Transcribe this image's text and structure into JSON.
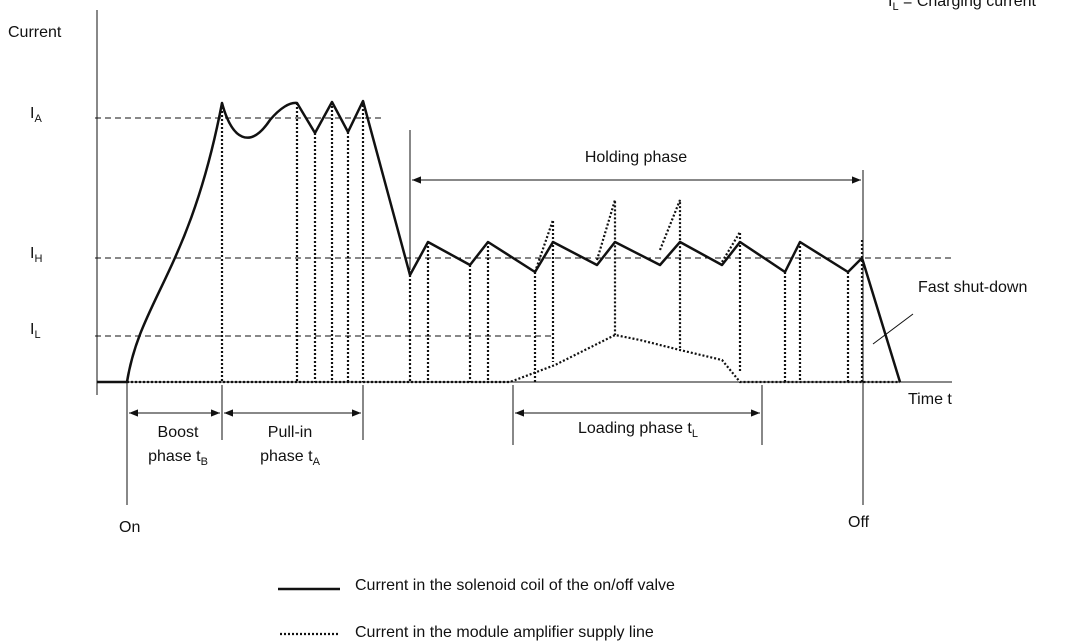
{
  "note_top": {
    "main": "I",
    "sub": "L",
    "rest": " = Charging current"
  },
  "y_axis_label": "Current",
  "levels": [
    {
      "main": "I",
      "sub": "A"
    },
    {
      "main": "I",
      "sub": "H"
    },
    {
      "main": "I",
      "sub": "L"
    }
  ],
  "holding_phase": "Holding phase",
  "fast_shutdown": "Fast shut-down",
  "time_label": "Time t",
  "boost": {
    "line1": "Boost",
    "line2": "phase t",
    "sub": "B"
  },
  "pullin": {
    "line1": "Pull-in",
    "line2": "phase t",
    "sub": "A"
  },
  "loading": {
    "main": "Loading phase t",
    "sub": "L"
  },
  "on": "On",
  "off": "Off",
  "legend": [
    "Current in the solenoid coil of the on/off valve",
    "Current in the module amplifier supply line"
  ]
}
